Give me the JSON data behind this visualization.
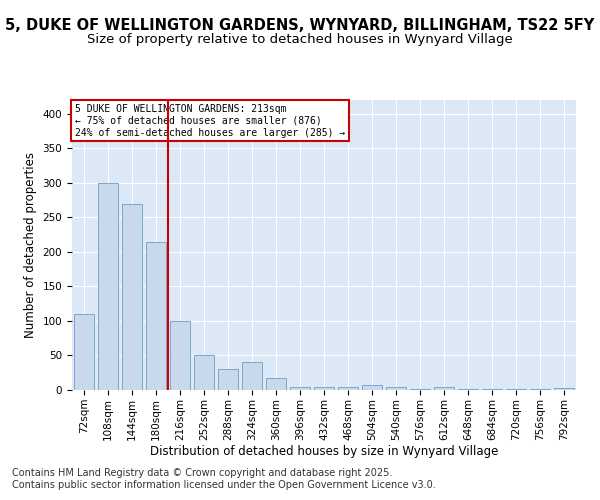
{
  "title": "5, DUKE OF WELLINGTON GARDENS, WYNYARD, BILLINGHAM, TS22 5FY",
  "subtitle": "Size of property relative to detached houses in Wynyard Village",
  "xlabel": "Distribution of detached houses by size in Wynyard Village",
  "ylabel": "Number of detached properties",
  "footnote1": "Contains HM Land Registry data © Crown copyright and database right 2025.",
  "footnote2": "Contains public sector information licensed under the Open Government Licence v3.0.",
  "annotation_line1": "5 DUKE OF WELLINGTON GARDENS: 213sqm",
  "annotation_line2": "← 75% of detached houses are smaller (876)",
  "annotation_line3": "24% of semi-detached houses are larger (285) →",
  "bar_values": [
    110,
    300,
    270,
    215,
    100,
    50,
    30,
    40,
    18,
    5,
    5,
    5,
    7,
    5,
    2,
    5,
    2,
    2,
    2,
    2,
    3
  ],
  "categories": [
    "72sqm",
    "108sqm",
    "144sqm",
    "180sqm",
    "216sqm",
    "252sqm",
    "288sqm",
    "324sqm",
    "360sqm",
    "396sqm",
    "432sqm",
    "468sqm",
    "504sqm",
    "540sqm",
    "576sqm",
    "612sqm",
    "648sqm",
    "684sqm",
    "720sqm",
    "756sqm",
    "792sqm"
  ],
  "bar_color": "#c9d9eb",
  "bar_edge_color": "#6b9ec8",
  "vline_x": 4,
  "vline_color": "#cc0000",
  "annotation_box_color": "#cc0000",
  "ylim": [
    0,
    420
  ],
  "yticks": [
    0,
    50,
    100,
    150,
    200,
    250,
    300,
    350,
    400
  ],
  "bg_color": "#ffffff",
  "plot_bg_color": "#dce8f5",
  "title_fontsize": 10.5,
  "subtitle_fontsize": 9.5,
  "axis_label_fontsize": 8.5,
  "tick_fontsize": 7.5,
  "footnote_fontsize": 7
}
